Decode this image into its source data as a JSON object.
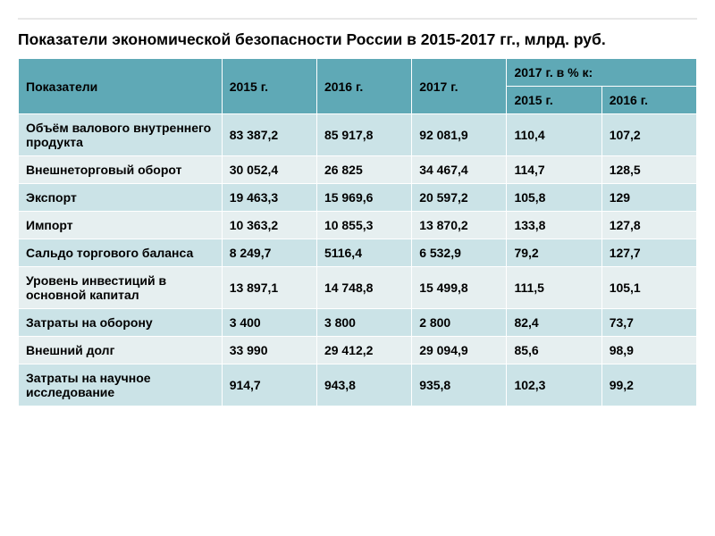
{
  "styling": {
    "slide_bg": "#ffffff",
    "title_color": "#000000",
    "title_fontsize_pt": 13,
    "font_family": "Arial",
    "cell_fontsize_pt": 10.5,
    "border_color": "#ffffff",
    "header_bg": "#5fa9b6",
    "row_even_bg": "#cbe3e7",
    "row_odd_bg": "#e6eff0",
    "top_line_color": "#e8e8e8",
    "column_widths_pct": [
      27.6,
      12.9,
      12.9,
      12.9,
      12.9,
      12.9
    ]
  },
  "title": "Показатели экономической безопасности России в 2015-2017 гг., млрд. руб.",
  "table": {
    "type": "table",
    "header": {
      "indicator_label": "Показатели",
      "years": [
        "2015 г.",
        "2016 г.",
        "2017 г."
      ],
      "pct_group_label": "2017 г. в % к:",
      "pct_years": [
        "2015 г.",
        "2016 г."
      ]
    },
    "rows": [
      {
        "label": "Объём валового внутреннего продукта",
        "v2015": "83 387,2",
        "v2016": "85 917,8",
        "v2017": "92 081,9",
        "p2015": "110,4",
        "p2016": "107,2"
      },
      {
        "label": "Внешнеторговый оборот",
        "v2015": "30 052,4",
        "v2016": "26 825",
        "v2017": "34 467,4",
        "p2015": "114,7",
        "p2016": "128,5"
      },
      {
        "label": "Экспорт",
        "v2015": "19 463,3",
        "v2016": "15 969,6",
        "v2017": "20 597,2",
        "p2015": "105,8",
        "p2016": "129"
      },
      {
        "label": "Импорт",
        "v2015": "10 363,2",
        "v2016": "10 855,3",
        "v2017": "13 870,2",
        "p2015": "133,8",
        "p2016": "127,8"
      },
      {
        "label": "Сальдо торгового баланса",
        "v2015": "8 249,7",
        "v2016": "5116,4",
        "v2017": "6 532,9",
        "p2015": "79,2",
        "p2016": "127,7"
      },
      {
        "label": "Уровень инвестиций в основной капитал",
        "v2015": "13 897,1",
        "v2016": "14 748,8",
        "v2017": "15 499,8",
        "p2015": "111,5",
        "p2016": "105,1"
      },
      {
        "label": "Затраты на оборону",
        "v2015": "3 400",
        "v2016": "3 800",
        "v2017": "2 800",
        "p2015": "82,4",
        "p2016": "73,7"
      },
      {
        "label": "Внешний долг",
        "v2015": "33 990",
        "v2016": "29 412,2",
        "v2017": "29 094,9",
        "p2015": "85,6",
        "p2016": "98,9"
      },
      {
        "label": "Затраты на научное исследование",
        "v2015": "914,7",
        "v2016": "943,8",
        "v2017": "935,8",
        "p2015": "102,3",
        "p2016": "99,2"
      }
    ]
  }
}
